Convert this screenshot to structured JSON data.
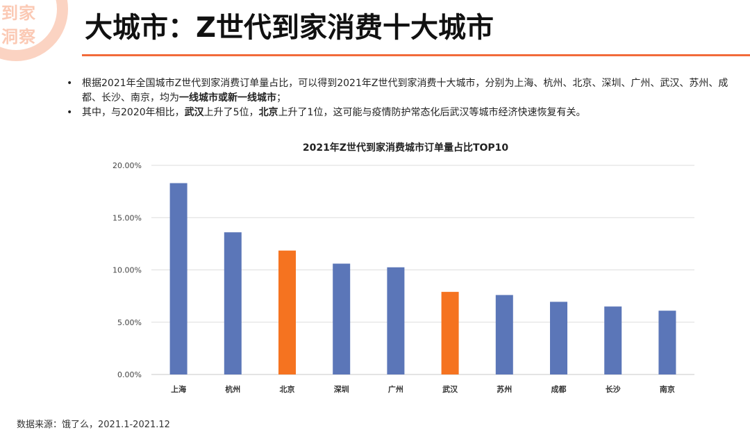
{
  "logo": {
    "line1": "到家",
    "line2": "洞察"
  },
  "header": {
    "title": "大城市：Z世代到家消费十大城市"
  },
  "bullets": {
    "b1_text": "根据2021年全国城市Z世代到家消费订单量占比，可以得到2021年Z世代到家消费十大城市，分别为上海、杭州、北京、深圳、广州、武汉、苏州、成都、长沙、南京，均为",
    "b1_bold": "一线城市或新一线城市",
    "b1_end": "；",
    "b2_part1": "其中，与2020年相比，",
    "b2_bold1": "武汉",
    "b2_part2": "上升了5位，",
    "b2_bold2": "北京",
    "b2_part3": "上升了1位，这可能与疫情防护常态化后武汉等城市经济快速恢复有关。"
  },
  "source": {
    "text": "数据来源：饿了么，2021.1-2021.12"
  },
  "colors": {
    "blue": "#5b76b8",
    "orange": "#f57320",
    "grid": "#dddddd"
  },
  "chart_data": {
    "type": "bar",
    "title": "2021年Z世代到家消费城市订单量占比TOP10",
    "xlabel": "",
    "ylabel": "",
    "categories": [
      "上海",
      "杭州",
      "北京",
      "深圳",
      "广州",
      "武汉",
      "苏州",
      "成都",
      "长沙",
      "南京"
    ],
    "values": [
      18.3,
      13.6,
      11.85,
      10.6,
      10.25,
      7.9,
      7.6,
      6.95,
      6.5,
      6.1
    ],
    "highlight": [
      false,
      false,
      true,
      false,
      false,
      true,
      false,
      false,
      false,
      false
    ],
    "yticks": [
      "0.00%",
      "5.00%",
      "10.00%",
      "15.00%",
      "20.00%"
    ],
    "ylim": [
      0,
      20
    ],
    "grid": true,
    "legend": "none"
  }
}
